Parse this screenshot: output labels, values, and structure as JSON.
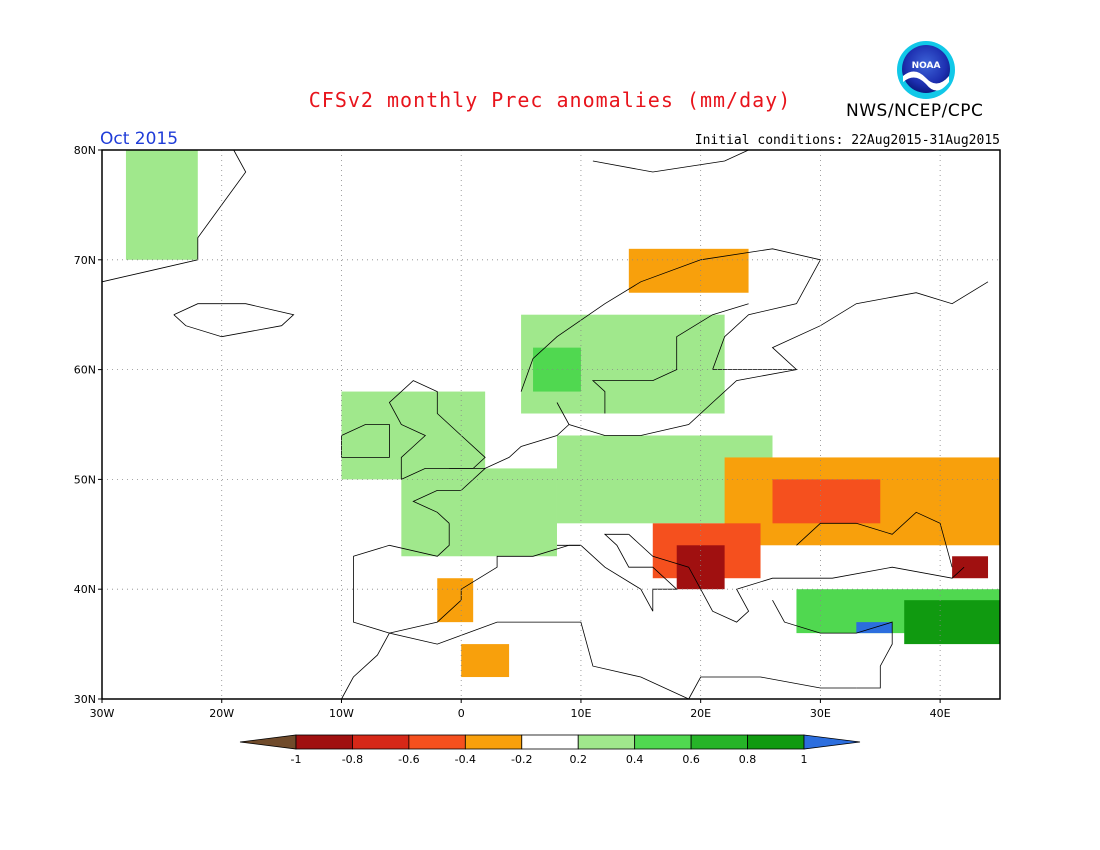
{
  "title": "CFSv2 monthly Prec anomalies (mm/day)",
  "agency": "NWS/NCEP/CPC",
  "logo_text": "NOAA",
  "month": "Oct 2015",
  "initial_conditions": "Initial conditions: 22Aug2015-31Aug2015",
  "map": {
    "lon_range": [
      -30,
      45
    ],
    "lat_range": [
      30,
      80
    ],
    "lon_ticks": [
      {
        "value": -30,
        "label": "30W"
      },
      {
        "value": -20,
        "label": "20W"
      },
      {
        "value": -10,
        "label": "10W"
      },
      {
        "value": 0,
        "label": "0"
      },
      {
        "value": 10,
        "label": "10E"
      },
      {
        "value": 20,
        "label": "20E"
      },
      {
        "value": 30,
        "label": "30E"
      },
      {
        "value": 40,
        "label": "40E"
      }
    ],
    "lat_ticks": [
      {
        "value": 80,
        "label": "80N"
      },
      {
        "value": 70,
        "label": "70N"
      },
      {
        "value": 60,
        "label": "60N"
      },
      {
        "value": 50,
        "label": "50N"
      },
      {
        "value": 40,
        "label": "40N"
      },
      {
        "value": 30,
        "label": "30N"
      }
    ],
    "grid": true
  },
  "colorbar": {
    "labels": [
      "-1",
      "-0.8",
      "-0.6",
      "-0.4",
      "-0.2",
      "0.2",
      "0.4",
      "0.6",
      "0.8",
      "1"
    ],
    "colors": [
      "#704b2b",
      "#a01010",
      "#d62818",
      "#f5501e",
      "#f8a00c",
      "#ffffff",
      "#a0e88c",
      "#50d850",
      "#26b428",
      "#109a10",
      "#2c6ede"
    ]
  },
  "anomaly_regions": [
    {
      "name": "greenland-wet",
      "color": "#a0e88c",
      "lon": [
        -28,
        -22
      ],
      "lat": [
        70,
        80
      ]
    },
    {
      "name": "british-isles-wet",
      "color": "#a0e88c",
      "lon": [
        -10,
        2
      ],
      "lat": [
        50,
        58
      ]
    },
    {
      "name": "france-wet",
      "color": "#a0e88c",
      "lon": [
        -5,
        8
      ],
      "lat": [
        43,
        51
      ]
    },
    {
      "name": "central-europe-wet",
      "color": "#a0e88c",
      "lon": [
        8,
        26
      ],
      "lat": [
        46,
        54
      ]
    },
    {
      "name": "scandinavia-wet",
      "color": "#a0e88c",
      "lon": [
        5,
        22
      ],
      "lat": [
        56,
        65
      ]
    },
    {
      "name": "sw-norway-wet",
      "color": "#50d850",
      "lon": [
        6,
        10
      ],
      "lat": [
        58,
        62
      ]
    },
    {
      "name": "north-norway-dry",
      "color": "#f8a00c",
      "lon": [
        14,
        24
      ],
      "lat": [
        67,
        71
      ]
    },
    {
      "name": "ukraine-dry",
      "color": "#f8a00c",
      "lon": [
        22,
        45
      ],
      "lat": [
        44,
        52
      ]
    },
    {
      "name": "ukraine-core-dry",
      "color": "#f5501e",
      "lon": [
        26,
        35
      ],
      "lat": [
        46,
        50
      ]
    },
    {
      "name": "balkans-dry",
      "color": "#f5501e",
      "lon": [
        16,
        25
      ],
      "lat": [
        41,
        46
      ]
    },
    {
      "name": "balkans-core-dry",
      "color": "#a01010",
      "lon": [
        18,
        22
      ],
      "lat": [
        40,
        44
      ]
    },
    {
      "name": "spain-east-dry",
      "color": "#f8a00c",
      "lon": [
        -2,
        1
      ],
      "lat": [
        37,
        41
      ]
    },
    {
      "name": "north-africa-dry",
      "color": "#f8a00c",
      "lon": [
        0,
        4
      ],
      "lat": [
        32,
        35
      ]
    },
    {
      "name": "turkey-wet",
      "color": "#50d850",
      "lon": [
        28,
        45
      ],
      "lat": [
        36,
        40
      ]
    },
    {
      "name": "east-turkey-wetter",
      "color": "#109a10",
      "lon": [
        37,
        45
      ],
      "lat": [
        35,
        39
      ]
    },
    {
      "name": "east-mediterranean-very-wet",
      "color": "#2c6ede",
      "lon": [
        33,
        36
      ],
      "lat": [
        36,
        37
      ]
    },
    {
      "name": "caucasus-dry",
      "color": "#a01010",
      "lon": [
        41,
        44
      ],
      "lat": [
        41,
        43
      ]
    }
  ]
}
